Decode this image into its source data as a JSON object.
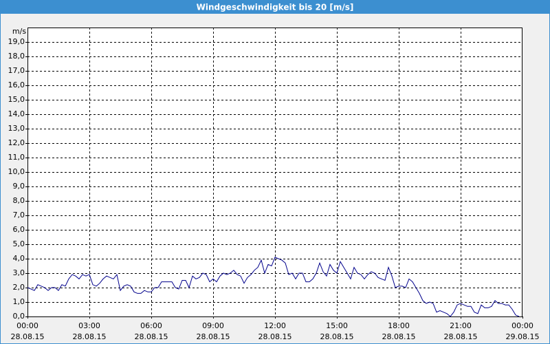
{
  "chart_data": {
    "type": "line",
    "title": "Windgeschwindigkeit bis 20 [m/s]",
    "y_label": "m/s",
    "x": [
      0,
      10,
      20,
      30,
      40,
      50,
      60,
      70,
      80,
      90,
      100,
      110,
      120,
      130,
      140,
      150,
      160,
      170,
      180,
      190,
      200,
      210,
      220,
      230,
      240,
      250,
      260,
      270,
      280,
      290,
      300,
      310,
      320,
      330,
      340,
      350,
      360,
      370,
      380,
      390,
      400,
      410,
      420,
      430,
      440,
      450,
      460,
      470,
      480,
      490,
      500,
      510,
      520,
      530,
      540,
      550,
      560,
      570,
      580,
      590,
      600,
      610,
      620,
      630,
      640,
      650,
      660,
      670,
      680,
      690,
      700,
      710,
      720,
      730,
      740,
      750,
      760,
      770,
      780,
      790,
      800,
      810,
      820,
      830,
      840,
      850,
      860,
      870,
      880,
      890,
      900,
      910,
      920,
      930,
      940,
      950,
      960,
      970,
      980,
      990,
      1000,
      1010,
      1020,
      1030,
      1040,
      1050,
      1060,
      1070,
      1080,
      1090,
      1100,
      1110,
      1120,
      1130,
      1140,
      1150,
      1160,
      1170,
      1180,
      1190,
      1200,
      1210,
      1220,
      1230,
      1240,
      1250,
      1260,
      1270,
      1280,
      1290,
      1300,
      1310,
      1320,
      1330,
      1340,
      1350,
      1360,
      1370,
      1380,
      1390,
      1400,
      1410,
      1420,
      1430
    ],
    "series": [
      {
        "name": "Windgeschwindigkeit",
        "color": "#00008b",
        "values": [
          2.0,
          1.9,
          1.8,
          2.2,
          2.1,
          2.0,
          1.8,
          2.0,
          2.0,
          1.8,
          2.2,
          2.1,
          2.6,
          2.9,
          2.8,
          2.6,
          2.9,
          2.8,
          2.9,
          2.2,
          2.1,
          2.3,
          2.6,
          2.8,
          2.7,
          2.6,
          2.9,
          1.8,
          2.1,
          2.2,
          2.1,
          1.7,
          1.6,
          1.6,
          1.8,
          1.7,
          1.7,
          2.0,
          2.0,
          2.4,
          2.4,
          2.4,
          2.4,
          2.0,
          1.9,
          2.5,
          2.5,
          2.0,
          2.8,
          2.6,
          2.7,
          3.0,
          2.9,
          2.4,
          2.6,
          2.4,
          2.8,
          3.0,
          2.9,
          3.0,
          3.2,
          2.9,
          2.8,
          2.3,
          2.7,
          2.9,
          3.2,
          3.4,
          3.9,
          3.0,
          3.6,
          3.5,
          4.1,
          4.0,
          3.9,
          3.7,
          2.9,
          3.0,
          2.6,
          3.0,
          3.0,
          2.4,
          2.4,
          2.6,
          3.0,
          3.7,
          3.1,
          2.8,
          3.6,
          3.2,
          3.0,
          3.8,
          3.4,
          3.0,
          2.6,
          3.4,
          3.0,
          2.9,
          2.6,
          2.9,
          3.1,
          3.0,
          2.7,
          2.6,
          2.5,
          3.4,
          2.8,
          2.0,
          2.1,
          2.1,
          2.0,
          2.6,
          2.4,
          2.0,
          1.6,
          1.1,
          0.9,
          1.0,
          0.9,
          0.3,
          0.4,
          0.3,
          0.2,
          0.0,
          0.3,
          0.8,
          0.9,
          0.8,
          0.7,
          0.7,
          0.3,
          0.2,
          0.8,
          0.6,
          0.6,
          0.7,
          1.1,
          0.9,
          0.9,
          0.8,
          0.8,
          0.5,
          0.1,
          0.0
        ]
      }
    ],
    "xlim": [
      0,
      1440
    ],
    "xticks": [
      {
        "value": 0,
        "label": [
          "00:00",
          "28.08.15"
        ]
      },
      {
        "value": 180,
        "label": [
          "03:00",
          "28.08.15"
        ]
      },
      {
        "value": 360,
        "label": [
          "06:00",
          "28.08.15"
        ]
      },
      {
        "value": 540,
        "label": [
          "09:00",
          "28.08.15"
        ]
      },
      {
        "value": 720,
        "label": [
          "12:00",
          "28.08.15"
        ]
      },
      {
        "value": 900,
        "label": [
          "15:00",
          "28.08.15"
        ]
      },
      {
        "value": 1080,
        "label": [
          "18:00",
          "28.08.15"
        ]
      },
      {
        "value": 1260,
        "label": [
          "21:00",
          "28.08.15"
        ]
      },
      {
        "value": 1440,
        "label": [
          "00:00",
          "29.08.15"
        ]
      }
    ],
    "ylim": [
      0,
      20
    ],
    "yticks": [
      {
        "value": 0,
        "label": "0,0"
      },
      {
        "value": 1,
        "label": "1,0"
      },
      {
        "value": 2,
        "label": "2,0"
      },
      {
        "value": 3,
        "label": "3,0"
      },
      {
        "value": 4,
        "label": "4,0"
      },
      {
        "value": 5,
        "label": "5,0"
      },
      {
        "value": 6,
        "label": "6,0"
      },
      {
        "value": 7,
        "label": "7,0"
      },
      {
        "value": 8,
        "label": "8,0"
      },
      {
        "value": 9,
        "label": "9,0"
      },
      {
        "value": 10,
        "label": "10,0"
      },
      {
        "value": 11,
        "label": "11,0"
      },
      {
        "value": 12,
        "label": "12,0"
      },
      {
        "value": 13,
        "label": "13,0"
      },
      {
        "value": 14,
        "label": "14,0"
      },
      {
        "value": 15,
        "label": "15,0"
      },
      {
        "value": 16,
        "label": "16,0"
      },
      {
        "value": 17,
        "label": "17,0"
      },
      {
        "value": 18,
        "label": "18,0"
      },
      {
        "value": 19,
        "label": "19,0"
      }
    ],
    "grid": true
  }
}
